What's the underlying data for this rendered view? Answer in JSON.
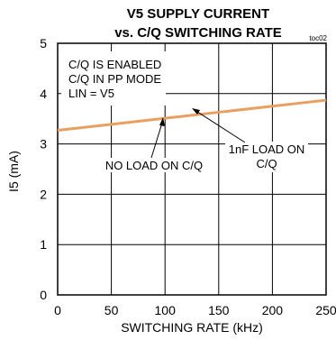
{
  "chart_data": {
    "type": "line",
    "title_line1": "V5 SUPPLY CURRENT",
    "title_line2": "vs. C/Q SWITCHING RATE",
    "figure_id": "toc02",
    "xlabel": "SWITCHING RATE (kHz)",
    "ylabel": "I5 (mA)",
    "xlim": [
      0,
      250
    ],
    "ylim": [
      0,
      5
    ],
    "x_ticks": [
      0,
      50,
      100,
      150,
      200,
      250
    ],
    "y_ticks": [
      0,
      1,
      2,
      3,
      4,
      5
    ],
    "grid": true,
    "series": [
      {
        "color": "#e8a060",
        "x": [
          0,
          50,
          100,
          150,
          200,
          250
        ],
        "y": [
          3.27,
          3.39,
          3.51,
          3.63,
          3.75,
          3.87
        ]
      }
    ],
    "annotations": {
      "box_line1": "C/Q IS ENABLED",
      "box_line2": "C/Q IN PP MODE",
      "box_line3": "LIN = V5",
      "no_load": "NO LOAD ON C/Q",
      "nf_load_line1": "1nF LOAD ON",
      "nf_load_line2": "C/Q"
    }
  }
}
